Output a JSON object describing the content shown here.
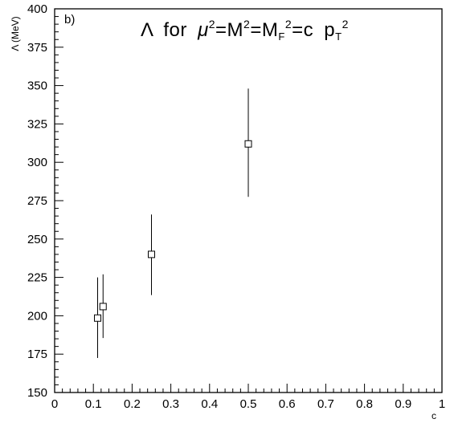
{
  "chart_data": {
    "type": "scatter",
    "panel_label": "b)",
    "title": "Λ for μ²=M²=M_F²=c p_T²",
    "title_parts": {
      "lambda": "Λ",
      "for": "for",
      "mu": "μ",
      "M": "M",
      "MF": "M",
      "F_sub": "F",
      "c": "c",
      "p": "p",
      "T_sub": "T",
      "sq": "2",
      "eq": "="
    },
    "xlabel": "c",
    "ylabel": "Λ (MeV)",
    "xlim": [
      0,
      1
    ],
    "ylim": [
      150,
      400
    ],
    "x_ticks": [
      0,
      0.1,
      0.2,
      0.3,
      0.4,
      0.5,
      0.6,
      0.7,
      0.8,
      0.9,
      1
    ],
    "x_tick_labels": [
      "0",
      "0.1",
      "0.2",
      "0.3",
      "0.4",
      "0.5",
      "0.6",
      "0.7",
      "0.8",
      "0.9",
      "1"
    ],
    "y_ticks": [
      150,
      175,
      200,
      225,
      250,
      275,
      300,
      325,
      350,
      375,
      400
    ],
    "y_tick_labels": [
      "150",
      "175",
      "200",
      "225",
      "250",
      "275",
      "300",
      "325",
      "350",
      "375",
      "400"
    ],
    "grid": false,
    "marker": "open-square",
    "series": [
      {
        "points": [
          {
            "x": 0.111,
            "y": 198.5,
            "y_low": 172.5,
            "y_high": 225
          },
          {
            "x": 0.125,
            "y": 206,
            "y_low": 185.5,
            "y_high": 227
          },
          {
            "x": 0.25,
            "y": 240,
            "y_low": 213.5,
            "y_high": 266
          },
          {
            "x": 0.5,
            "y": 312,
            "y_low": 277.5,
            "y_high": 348
          }
        ]
      }
    ]
  }
}
